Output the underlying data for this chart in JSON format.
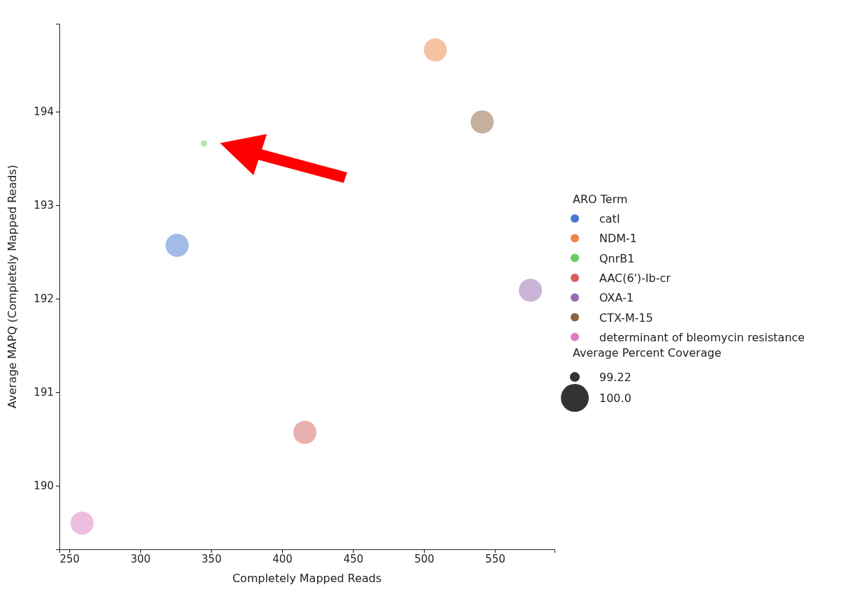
{
  "chart_data": {
    "type": "bubble",
    "xlabel": "Completely Mapped Reads",
    "ylabel": "Average MAPQ (Completely Mapped Reads)",
    "legend_title": "ARO Term",
    "annotations": [
      "Average Percent Coverage",
      "99.22",
      "100.0"
    ],
    "xlim": [
      243,
      592
    ],
    "xticks": [
      250,
      300,
      350,
      400,
      450,
      500,
      550
    ],
    "ylim": [
      189.32,
      194.94
    ],
    "yticks": [
      190,
      191,
      192,
      193,
      194
    ],
    "legend": "right",
    "grid": false,
    "marker": "circle",
    "series": [
      {
        "name": "catI",
        "color": "#4878d0",
        "x": [
          326
        ],
        "values": [
          192.57
        ],
        "sizes": [
          1
        ]
      },
      {
        "name": "NDM-1",
        "color": "#ee854a",
        "x": [
          508
        ],
        "values": [
          194.66
        ],
        "sizes": [
          1
        ]
      },
      {
        "name": "QnrB1",
        "color": "#6acc64",
        "x": [
          345
        ],
        "values": [
          193.66
        ],
        "sizes": [
          0.09
        ]
      },
      {
        "name": "AAC(6')-Ib-cr",
        "color": "#d65f5f",
        "x": [
          416
        ],
        "values": [
          190.57
        ],
        "sizes": [
          1
        ]
      },
      {
        "name": "OXA-1",
        "color": "#956cb4",
        "x": [
          575
        ],
        "values": [
          192.09
        ],
        "sizes": [
          1
        ]
      },
      {
        "name": "CTX-M-15",
        "color": "#8c613c",
        "x": [
          541
        ],
        "values": [
          193.89
        ],
        "sizes": [
          1
        ]
      },
      {
        "name": "determinant of bleomycin resistance",
        "color": "#dc7ec0",
        "x": [
          259
        ],
        "values": [
          189.6
        ],
        "sizes": [
          1
        ]
      }
    ]
  }
}
